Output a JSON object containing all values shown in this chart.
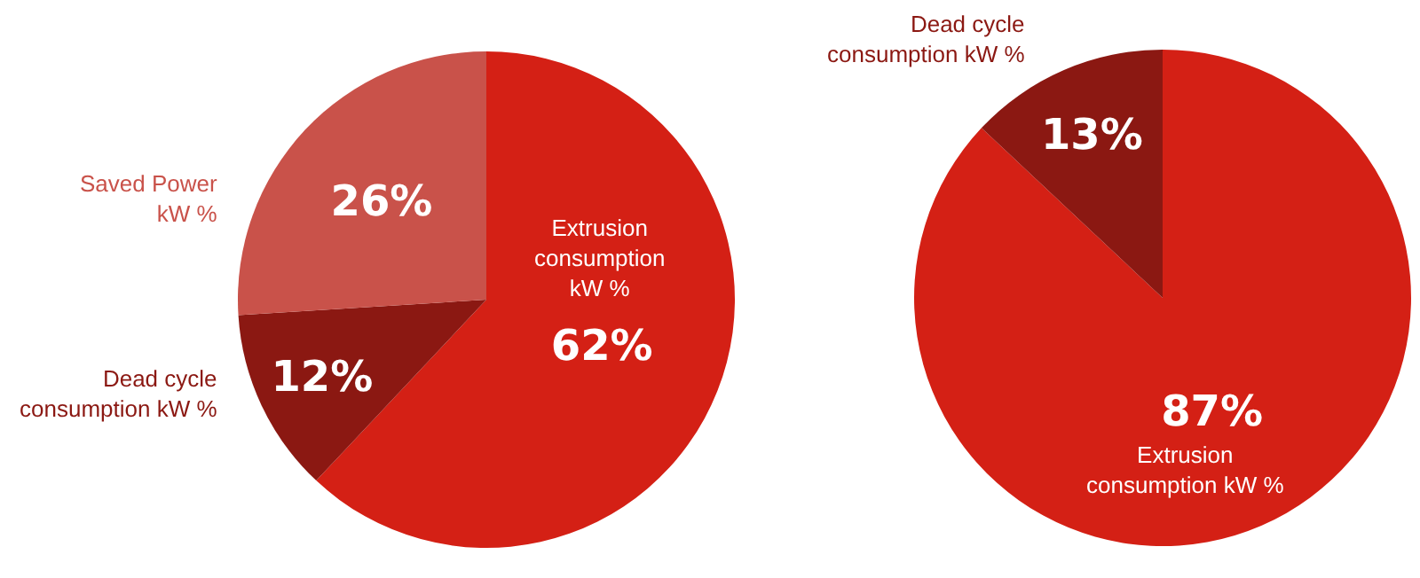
{
  "chart_data": [
    {
      "type": "pie",
      "categories": [
        "Extrusion\nconsumption\nkW %",
        "Dead cycle\nconsumption kW %",
        "Saved Power\nkW %"
      ],
      "values": [
        62,
        12,
        26
      ],
      "colors": [
        "#d42015",
        "#8b1812",
        "#c9524a"
      ],
      "value_labels": [
        "62%",
        "12%",
        "26%"
      ]
    },
    {
      "type": "pie",
      "categories": [
        "Extrusion\nconsumption kW %",
        "Dead cycle\nconsumption kW %"
      ],
      "values": [
        87,
        13
      ],
      "colors": [
        "#d42015",
        "#8b1812"
      ],
      "value_labels": [
        "87%",
        "13%"
      ]
    }
  ]
}
